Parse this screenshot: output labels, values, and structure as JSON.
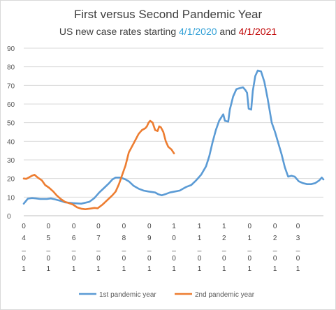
{
  "title": "First versus Second Pandemic Year",
  "subtitle": {
    "prefix": "US new case rates starting ",
    "date1": "4/1/2020",
    "middle": " and ",
    "date2": "4/1/2021"
  },
  "colors": {
    "series1": "#5b9bd5",
    "series2": "#ed7d31",
    "date1": "#2e9fd6",
    "date2": "#c00000",
    "grid": "#d9d9d9"
  },
  "chart_data": {
    "type": "line",
    "title": "First versus Second Pandemic Year",
    "subtitle": "US new case rates starting 4/1/2020 and 4/1/2021",
    "ylim": [
      0,
      90
    ],
    "yticks": [
      0,
      10,
      20,
      30,
      40,
      50,
      60,
      70,
      80,
      90
    ],
    "xlim": [
      0,
      365
    ],
    "grid": true,
    "legend": "bottom",
    "x_ticks": [
      {
        "x": 0,
        "label": [
          "0",
          "4",
          "_",
          "0",
          "1"
        ]
      },
      {
        "x": 30,
        "label": [
          "0",
          "5",
          "_",
          "0",
          "1"
        ]
      },
      {
        "x": 61,
        "label": [
          "0",
          "6",
          "_",
          "0",
          "1"
        ]
      },
      {
        "x": 91,
        "label": [
          "0",
          "7",
          "_",
          "0",
          "1"
        ]
      },
      {
        "x": 122,
        "label": [
          "0",
          "8",
          "_",
          "0",
          "1"
        ]
      },
      {
        "x": 153,
        "label": [
          "0",
          "9",
          "_",
          "0",
          "1"
        ]
      },
      {
        "x": 183,
        "label": [
          "1",
          "0",
          "_",
          "0",
          "1"
        ]
      },
      {
        "x": 214,
        "label": [
          "1",
          "1",
          "_",
          "0",
          "1"
        ]
      },
      {
        "x": 244,
        "label": [
          "1",
          "2",
          "_",
          "0",
          "1"
        ]
      },
      {
        "x": 275,
        "label": [
          "0",
          "1",
          "_",
          "0",
          "1"
        ]
      },
      {
        "x": 306,
        "label": [
          "0",
          "2",
          "_",
          "0",
          "1"
        ]
      },
      {
        "x": 334,
        "label": [
          "0",
          "3",
          "_",
          "0",
          "1"
        ]
      }
    ],
    "series": [
      {
        "name": "1st pandemic year",
        "points": [
          [
            0,
            6.5
          ],
          [
            5,
            9.2
          ],
          [
            10,
            9.5
          ],
          [
            15,
            9.3
          ],
          [
            20,
            9
          ],
          [
            28,
            9
          ],
          [
            33,
            9.3
          ],
          [
            38,
            8.8
          ],
          [
            45,
            8
          ],
          [
            50,
            7.2
          ],
          [
            60,
            6.8
          ],
          [
            70,
            6.5
          ],
          [
            80,
            7.5
          ],
          [
            86,
            9.5
          ],
          [
            92,
            12.5
          ],
          [
            98,
            15
          ],
          [
            104,
            17.5
          ],
          [
            108,
            19.5
          ],
          [
            112,
            20.5
          ],
          [
            118,
            20.5
          ],
          [
            124,
            19.5
          ],
          [
            128,
            18.5
          ],
          [
            134,
            16
          ],
          [
            140,
            14.5
          ],
          [
            146,
            13.5
          ],
          [
            152,
            13
          ],
          [
            160,
            12.5
          ],
          [
            164,
            11.5
          ],
          [
            168,
            11
          ],
          [
            172,
            11.5
          ],
          [
            178,
            12.5
          ],
          [
            184,
            13
          ],
          [
            190,
            13.5
          ],
          [
            194,
            14.5
          ],
          [
            198,
            15.5
          ],
          [
            204,
            16.5
          ],
          [
            210,
            19
          ],
          [
            216,
            22
          ],
          [
            222,
            26.5
          ],
          [
            226,
            32
          ],
          [
            230,
            39.5
          ],
          [
            234,
            46
          ],
          [
            238,
            51
          ],
          [
            243,
            54.5
          ],
          [
            245,
            51
          ],
          [
            249,
            50.5
          ],
          [
            251,
            57
          ],
          [
            255,
            64
          ],
          [
            259,
            68
          ],
          [
            263,
            68.5
          ],
          [
            267,
            69
          ],
          [
            270,
            67.5
          ],
          [
            272,
            66
          ],
          [
            274,
            57.5
          ],
          [
            277,
            57
          ],
          [
            279,
            67
          ],
          [
            282,
            75
          ],
          [
            285,
            78
          ],
          [
            289,
            77.5
          ],
          [
            293,
            72
          ],
          [
            297,
            63
          ],
          [
            302,
            50
          ],
          [
            306,
            45
          ],
          [
            310,
            39
          ],
          [
            314,
            33
          ],
          [
            318,
            26
          ],
          [
            322,
            21
          ],
          [
            326,
            21.5
          ],
          [
            330,
            21
          ],
          [
            335,
            18.5
          ],
          [
            340,
            17.5
          ],
          [
            345,
            17
          ],
          [
            350,
            17
          ],
          [
            355,
            17.5
          ],
          [
            360,
            19
          ],
          [
            363,
            20.5
          ],
          [
            365,
            19.5
          ]
        ]
      },
      {
        "name": "2nd pandemic year",
        "points": [
          [
            0,
            20
          ],
          [
            3,
            19.8
          ],
          [
            6,
            20.5
          ],
          [
            10,
            21.5
          ],
          [
            13,
            22
          ],
          [
            17,
            20.5
          ],
          [
            22,
            19
          ],
          [
            26,
            16.5
          ],
          [
            31,
            15
          ],
          [
            36,
            13
          ],
          [
            40,
            11
          ],
          [
            45,
            9
          ],
          [
            50,
            7.5
          ],
          [
            55,
            6.8
          ],
          [
            60,
            6
          ],
          [
            65,
            4.5
          ],
          [
            70,
            3.8
          ],
          [
            75,
            3.5
          ],
          [
            80,
            3.8
          ],
          [
            86,
            4.2
          ],
          [
            90,
            4
          ],
          [
            96,
            6
          ],
          [
            102,
            8.5
          ],
          [
            108,
            11
          ],
          [
            112,
            13
          ],
          [
            116,
            17
          ],
          [
            120,
            22
          ],
          [
            124,
            27
          ],
          [
            128,
            34
          ],
          [
            134,
            39
          ],
          [
            140,
            44
          ],
          [
            144,
            46
          ],
          [
            148,
            47
          ],
          [
            150,
            48
          ],
          [
            152,
            50
          ],
          [
            154,
            51
          ],
          [
            157,
            50
          ],
          [
            160,
            46
          ],
          [
            163,
            45.5
          ],
          [
            165,
            48
          ],
          [
            167,
            47.5
          ],
          [
            170,
            45
          ],
          [
            173,
            40
          ],
          [
            176,
            37
          ],
          [
            180,
            35.5
          ],
          [
            183,
            33.5
          ]
        ]
      }
    ]
  }
}
